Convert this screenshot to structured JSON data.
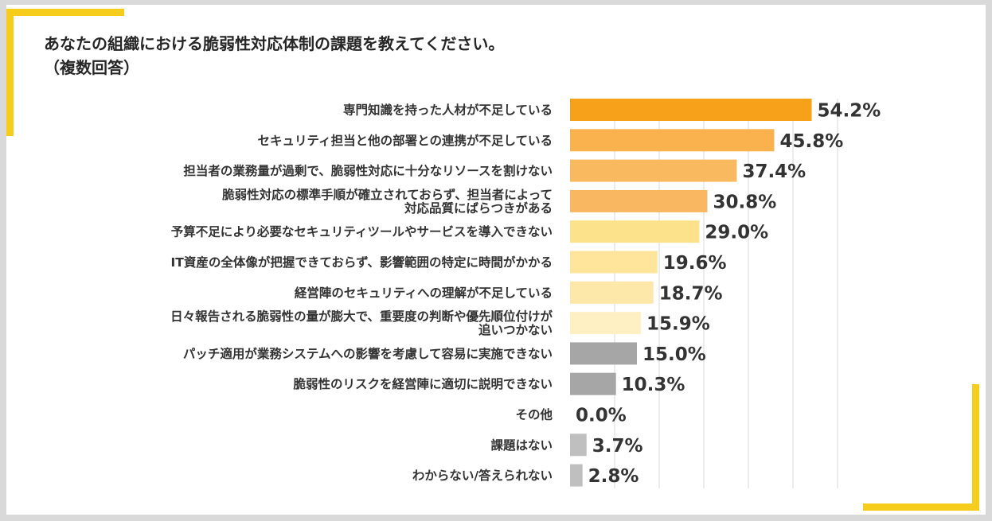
{
  "title_line1": "あなたの組織における脆弱性対応体制の課題を教えてください。",
  "title_line2": "（複数回答）",
  "chart_data": {
    "type": "bar",
    "orientation": "horizontal",
    "title": "あなたの組織における脆弱性対応体制の課題を教えてください。（複数回答）",
    "xlim": [
      0,
      60
    ],
    "grid": true,
    "categories": [
      [
        "専門知識を持った人材が不足している"
      ],
      [
        "セキュリティ担当と他の部署との連携が不足している"
      ],
      [
        "担当者の業務量が過剰で、脆弱性対応に十分なリソースを割けない"
      ],
      [
        "脆弱性対応の標準手順が確立されておらず、担当者によって",
        "対応品質にばらつきがある"
      ],
      [
        "予算不足により必要なセキュリティツールやサービスを導入できない"
      ],
      [
        "IT資産の全体像が把握できておらず、影響範囲の特定に時間がかかる"
      ],
      [
        "経営陣のセキュリティへの理解が不足している"
      ],
      [
        "日々報告される脆弱性の量が膨大で、重要度の判断や優先順位付けが",
        "追いつかない"
      ],
      [
        "パッチ適用が業務システムへの影響を考慮して容易に実施できない"
      ],
      [
        "脆弱性のリスクを経営陣に適切に説明できない"
      ],
      [
        "その他"
      ],
      [
        "課題はない"
      ],
      [
        "わからない/答えられない"
      ]
    ],
    "values": [
      54.2,
      45.8,
      37.4,
      30.8,
      29.0,
      19.6,
      18.7,
      15.9,
      15.0,
      10.3,
      0.0,
      3.7,
      2.8
    ],
    "value_labels": [
      "54.2%",
      "45.8%",
      "37.4%",
      "30.8%",
      "29.0%",
      "19.6%",
      "18.7%",
      "15.9%",
      "15.0%",
      "10.3%",
      "0.0%",
      "3.7%",
      "2.8%"
    ],
    "colors": [
      "#f7a11a",
      "#f9b24e",
      "#f9b95f",
      "#fab761",
      "#fde28c",
      "#fee59b",
      "#fee8a9",
      "#fff0c4",
      "#a6a6a6",
      "#a6a6a6",
      "#bfbfbf",
      "#bfbfbf",
      "#bfbfbf"
    ]
  }
}
